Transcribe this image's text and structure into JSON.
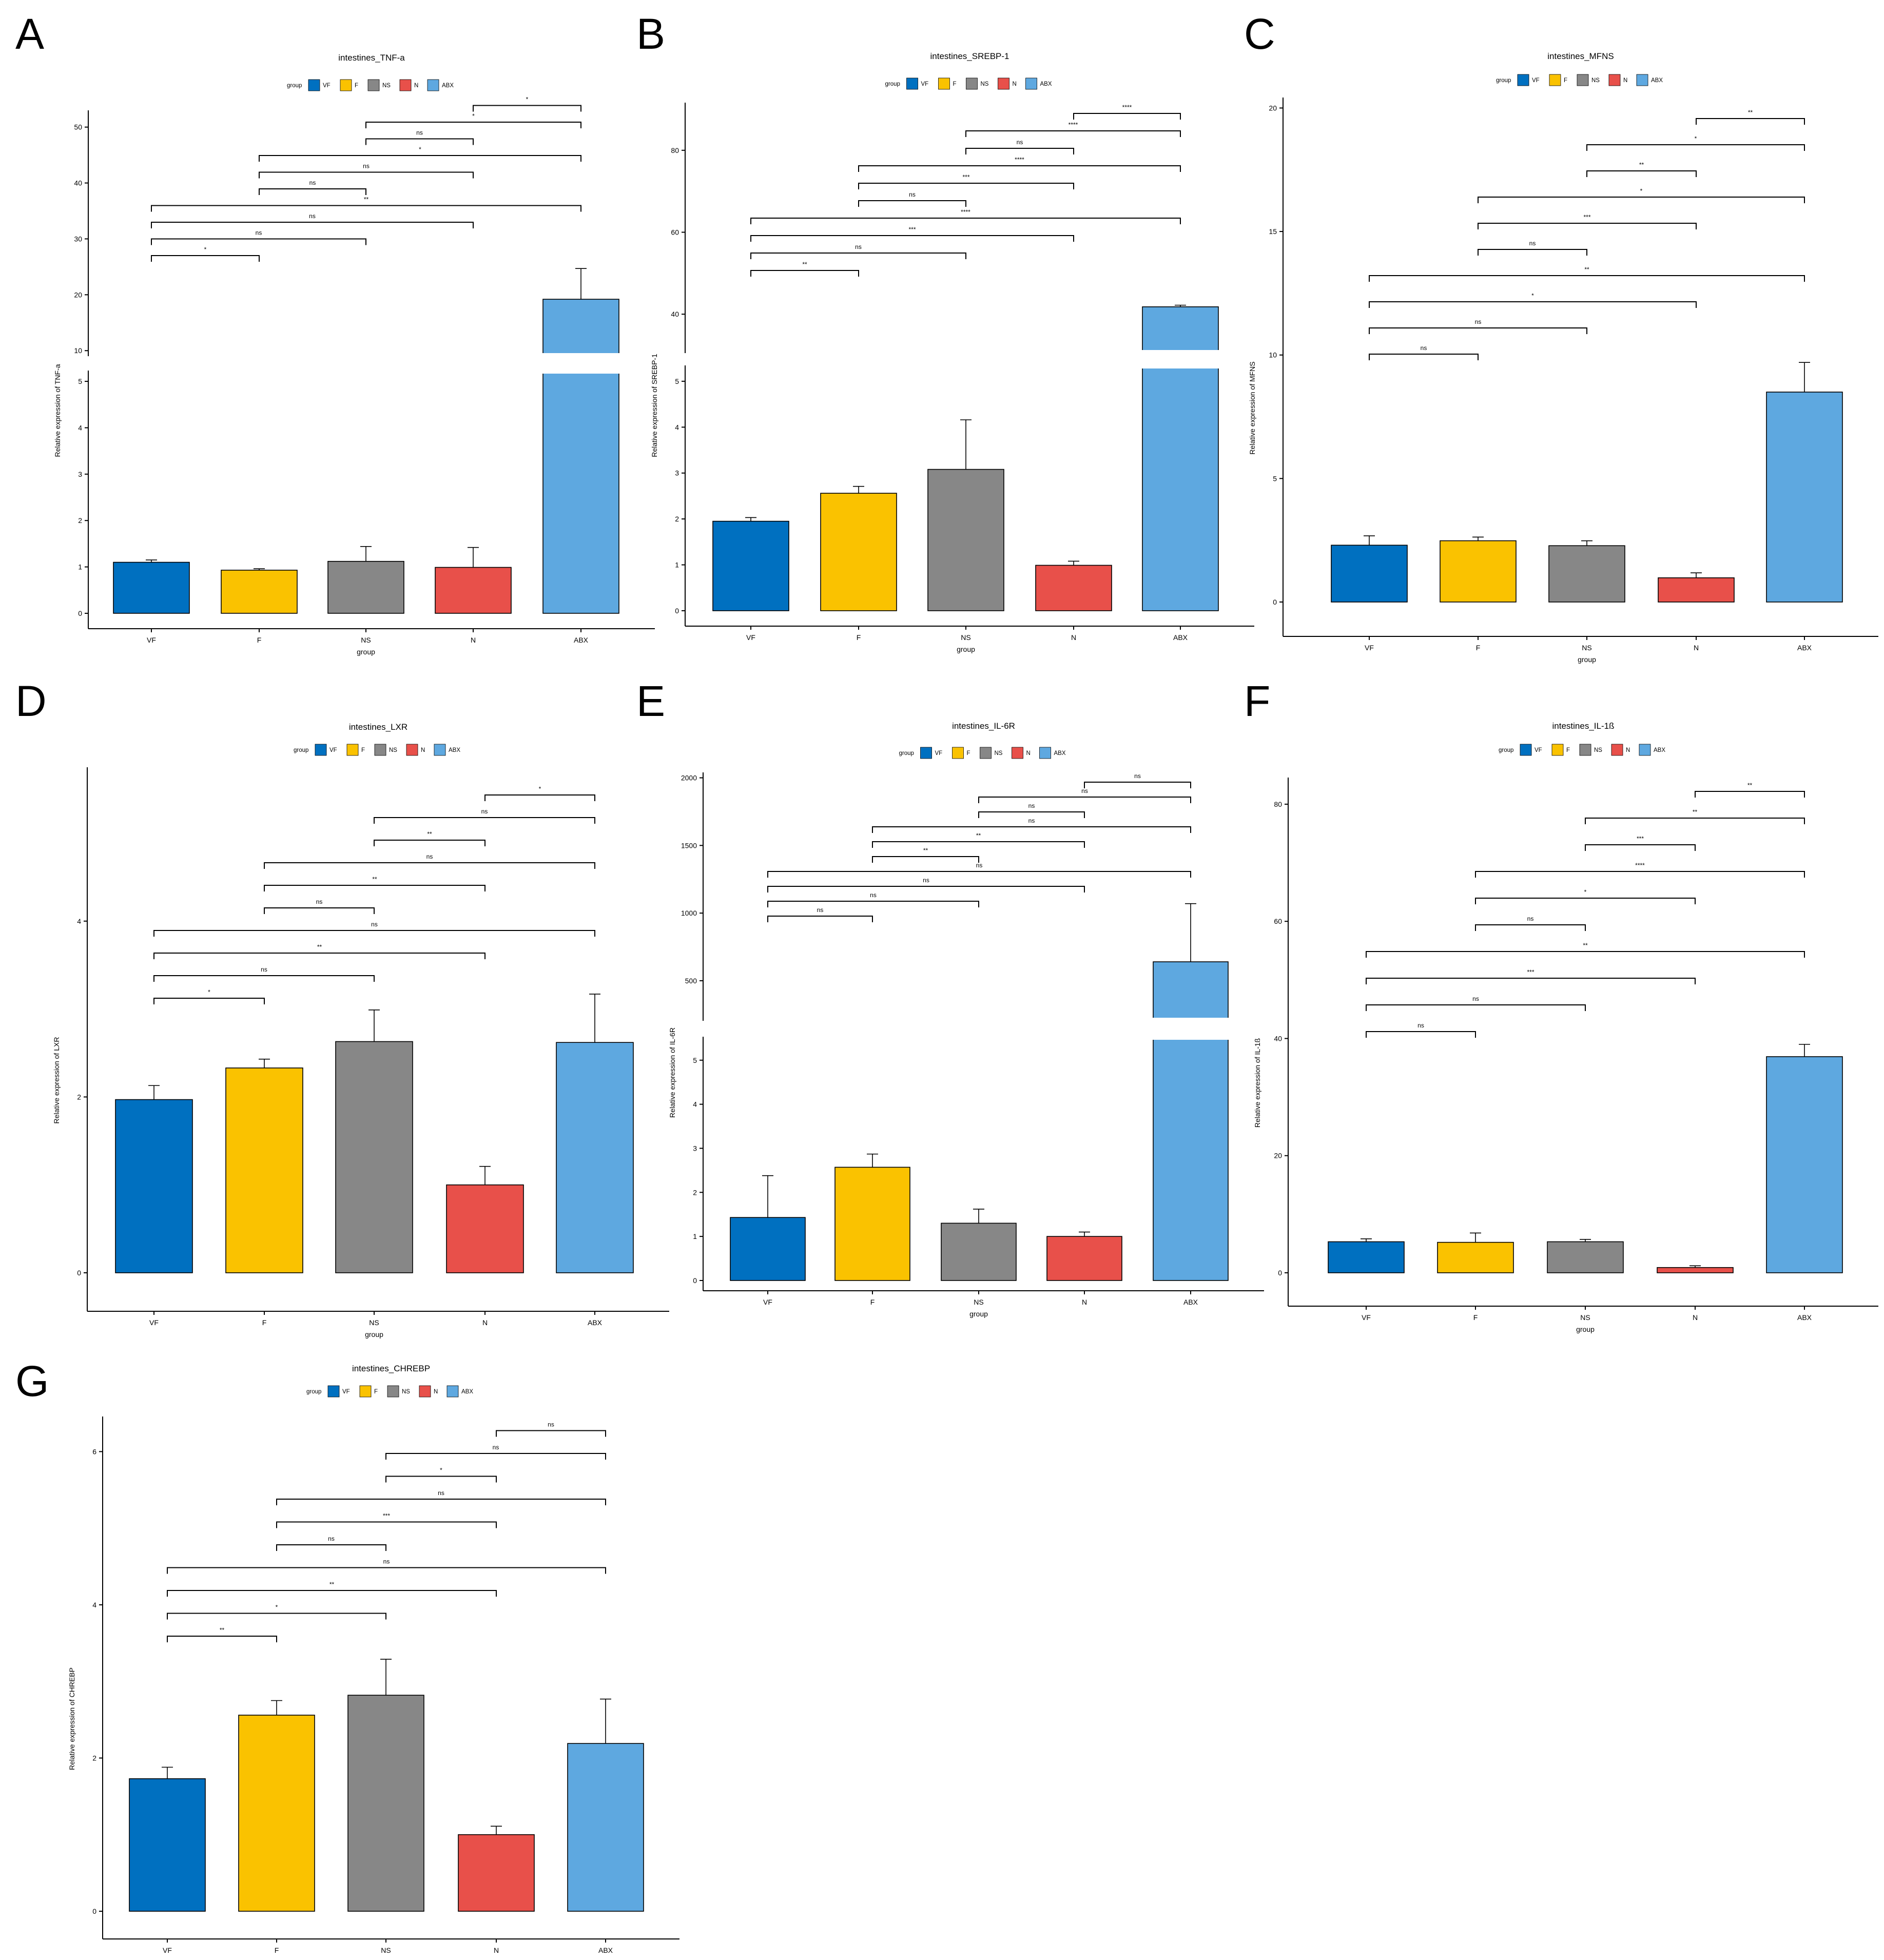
{
  "groups": [
    "VF",
    "F",
    "NS",
    "N",
    "ABX"
  ],
  "legend_title": "group",
  "colors": {
    "VF": "#0070c0",
    "F": "#fac200",
    "NS": "#878787",
    "N": "#e8504a",
    "ABX": "#5ea8e0"
  },
  "chart_data": [
    {
      "id": "A",
      "type": "bar",
      "title": "intestines_TNF-a",
      "xlabel": "group",
      "ylabel": "Relative expression of TNF-a",
      "categories": [
        "VF",
        "F",
        "NS",
        "N",
        "ABX"
      ],
      "values": [
        1.1,
        0.93,
        1.12,
        0.99,
        19.2
      ],
      "errors": [
        0.05,
        0.03,
        0.32,
        0.43,
        5.5
      ],
      "axis_break": true,
      "lower_range": [
        0,
        5.2
      ],
      "lower_ticks": [
        "0",
        "1",
        "2",
        "3",
        "4",
        "5"
      ],
      "upper_range": [
        8,
        53
      ],
      "upper_ticks": [
        "10",
        "20",
        "30",
        "40",
        "50"
      ],
      "brackets": [
        {
          "from": "VF",
          "to": "F",
          "label": "*"
        },
        {
          "from": "VF",
          "to": "NS",
          "label": "ns"
        },
        {
          "from": "VF",
          "to": "N",
          "label": "ns"
        },
        {
          "from": "VF",
          "to": "ABX",
          "label": "**"
        },
        {
          "from": "F",
          "to": "NS",
          "label": "ns"
        },
        {
          "from": "F",
          "to": "N",
          "label": "ns"
        },
        {
          "from": "F",
          "to": "ABX",
          "label": "*"
        },
        {
          "from": "NS",
          "to": "N",
          "label": "ns"
        },
        {
          "from": "NS",
          "to": "ABX",
          "label": "*"
        },
        {
          "from": "N",
          "to": "ABX",
          "label": "*"
        }
      ]
    },
    {
      "id": "B",
      "type": "bar",
      "title": "intestines_SREBP-1",
      "xlabel": "group",
      "ylabel": "Relative expression of SREBP-1",
      "categories": [
        "VF",
        "F",
        "NS",
        "N",
        "ABX"
      ],
      "values": [
        1.95,
        2.56,
        3.08,
        0.99,
        41.8
      ],
      "errors": [
        0.08,
        0.15,
        1.08,
        0.09,
        0.4
      ],
      "axis_break": true,
      "lower_range": [
        0,
        5.2
      ],
      "lower_ticks": [
        "0",
        "1",
        "2",
        "3",
        "4",
        "5"
      ],
      "upper_range": [
        29,
        91
      ],
      "upper_ticks": [
        "40",
        "60",
        "80"
      ],
      "brackets": [
        {
          "from": "VF",
          "to": "F",
          "label": "**"
        },
        {
          "from": "VF",
          "to": "NS",
          "label": "ns"
        },
        {
          "from": "VF",
          "to": "N",
          "label": "***"
        },
        {
          "from": "VF",
          "to": "ABX",
          "label": "****"
        },
        {
          "from": "F",
          "to": "NS",
          "label": "ns"
        },
        {
          "from": "F",
          "to": "N",
          "label": "***"
        },
        {
          "from": "F",
          "to": "ABX",
          "label": "****"
        },
        {
          "from": "NS",
          "to": "N",
          "label": "ns"
        },
        {
          "from": "NS",
          "to": "ABX",
          "label": "****"
        },
        {
          "from": "N",
          "to": "ABX",
          "label": "****"
        }
      ]
    },
    {
      "id": "C",
      "type": "bar",
      "title": "intestines_MFNS",
      "xlabel": "group",
      "ylabel": "Relative expression of MFNS",
      "categories": [
        "VF",
        "F",
        "NS",
        "N",
        "ABX"
      ],
      "values": [
        2.3,
        2.48,
        2.28,
        0.98,
        8.5
      ],
      "errors": [
        0.38,
        0.15,
        0.2,
        0.2,
        1.2
      ],
      "axis_break": false,
      "ylim": [
        0,
        20.3
      ],
      "ticks": [
        "0",
        "5",
        "10",
        "15",
        "20"
      ],
      "brackets": [
        {
          "from": "VF",
          "to": "F",
          "label": "ns"
        },
        {
          "from": "VF",
          "to": "NS",
          "label": "ns"
        },
        {
          "from": "VF",
          "to": "N",
          "label": "*"
        },
        {
          "from": "VF",
          "to": "ABX",
          "label": "**"
        },
        {
          "from": "F",
          "to": "NS",
          "label": "ns"
        },
        {
          "from": "F",
          "to": "N",
          "label": "***"
        },
        {
          "from": "F",
          "to": "ABX",
          "label": "*"
        },
        {
          "from": "NS",
          "to": "N",
          "label": "**"
        },
        {
          "from": "NS",
          "to": "ABX",
          "label": "*"
        },
        {
          "from": "N",
          "to": "ABX",
          "label": "**"
        }
      ]
    },
    {
      "id": "D",
      "type": "bar",
      "title": "intestines_LXR",
      "xlabel": "group",
      "ylabel": "Relative expression of LXR",
      "categories": [
        "VF",
        "F",
        "NS",
        "N",
        "ABX"
      ],
      "values": [
        1.97,
        2.33,
        2.63,
        1.0,
        2.62
      ],
      "errors": [
        0.16,
        0.1,
        0.36,
        0.21,
        0.55
      ],
      "axis_break": false,
      "ylim": [
        0,
        5.75
      ],
      "ticks": [
        "0",
        "2",
        "4"
      ],
      "brackets": [
        {
          "from": "VF",
          "to": "F",
          "label": "*"
        },
        {
          "from": "VF",
          "to": "NS",
          "label": "ns"
        },
        {
          "from": "VF",
          "to": "N",
          "label": "**"
        },
        {
          "from": "VF",
          "to": "ABX",
          "label": "ns"
        },
        {
          "from": "F",
          "to": "NS",
          "label": "ns"
        },
        {
          "from": "F",
          "to": "N",
          "label": "**"
        },
        {
          "from": "F",
          "to": "ABX",
          "label": "ns"
        },
        {
          "from": "NS",
          "to": "N",
          "label": "**"
        },
        {
          "from": "NS",
          "to": "ABX",
          "label": "ns"
        },
        {
          "from": "N",
          "to": "ABX",
          "label": "*"
        }
      ]
    },
    {
      "id": "E",
      "type": "bar",
      "title": "intestines_IL-6R",
      "xlabel": "group",
      "ylabel": "Relative expression of IL-6R",
      "categories": [
        "VF",
        "F",
        "NS",
        "N",
        "ABX"
      ],
      "values": [
        1.43,
        2.57,
        1.3,
        1.0,
        640
      ],
      "errors": [
        0.95,
        0.3,
        0.32,
        0.1,
        430
      ],
      "axis_break": true,
      "lower_range": [
        0,
        5.3
      ],
      "lower_ticks": [
        "0",
        "1",
        "2",
        "3",
        "4",
        "5"
      ],
      "upper_range": [
        200,
        2040
      ],
      "upper_ticks": [
        "500",
        "1000",
        "1500",
        "2000"
      ],
      "brackets": [
        {
          "from": "VF",
          "to": "F",
          "label": "ns"
        },
        {
          "from": "VF",
          "to": "NS",
          "label": "ns"
        },
        {
          "from": "VF",
          "to": "N",
          "label": "ns"
        },
        {
          "from": "VF",
          "to": "ABX",
          "label": "ns"
        },
        {
          "from": "F",
          "to": "NS",
          "label": "**"
        },
        {
          "from": "F",
          "to": "N",
          "label": "**"
        },
        {
          "from": "F",
          "to": "ABX",
          "label": "ns"
        },
        {
          "from": "NS",
          "to": "N",
          "label": "ns"
        },
        {
          "from": "NS",
          "to": "ABX",
          "label": "ns"
        },
        {
          "from": "N",
          "to": "ABX",
          "label": "ns"
        }
      ]
    },
    {
      "id": "F",
      "type": "bar",
      "title": "intestines_IL-1ß",
      "xlabel": "group",
      "ylabel": "Relative expression of IL-1ß",
      "categories": [
        "VF",
        "F",
        "NS",
        "N",
        "ABX"
      ],
      "values": [
        5.3,
        5.2,
        5.3,
        0.9,
        36.9
      ],
      "errors": [
        0.5,
        1.6,
        0.4,
        0.3,
        2.1
      ],
      "axis_break": false,
      "ylim": [
        0,
        83.5
      ],
      "ticks": [
        "0",
        "20",
        "40",
        "60",
        "80"
      ],
      "brackets": [
        {
          "from": "VF",
          "to": "F",
          "label": "ns"
        },
        {
          "from": "VF",
          "to": "NS",
          "label": "ns"
        },
        {
          "from": "VF",
          "to": "N",
          "label": "***"
        },
        {
          "from": "VF",
          "to": "ABX",
          "label": "**"
        },
        {
          "from": "F",
          "to": "NS",
          "label": "ns"
        },
        {
          "from": "F",
          "to": "N",
          "label": "*"
        },
        {
          "from": "F",
          "to": "ABX",
          "label": "****"
        },
        {
          "from": "NS",
          "to": "N",
          "label": "***"
        },
        {
          "from": "NS",
          "to": "ABX",
          "label": "**"
        },
        {
          "from": "N",
          "to": "ABX",
          "label": "**"
        }
      ]
    },
    {
      "id": "G",
      "type": "bar",
      "title": "intestines_CHREBP",
      "xlabel": "group",
      "ylabel": "Relative expression of CHREBP",
      "categories": [
        "VF",
        "F",
        "NS",
        "N",
        "ABX"
      ],
      "values": [
        1.73,
        2.56,
        2.82,
        1.0,
        2.19
      ],
      "errors": [
        0.15,
        0.19,
        0.47,
        0.11,
        0.58
      ],
      "axis_break": false,
      "ylim": [
        0,
        6.15
      ],
      "ticks": [
        "0",
        "2",
        "4",
        "6"
      ],
      "brackets": [
        {
          "from": "VF",
          "to": "F",
          "label": "**"
        },
        {
          "from": "VF",
          "to": "NS",
          "label": "*"
        },
        {
          "from": "VF",
          "to": "N",
          "label": "**"
        },
        {
          "from": "VF",
          "to": "ABX",
          "label": "ns"
        },
        {
          "from": "F",
          "to": "NS",
          "label": "ns"
        },
        {
          "from": "F",
          "to": "N",
          "label": "***"
        },
        {
          "from": "F",
          "to": "ABX",
          "label": "ns"
        },
        {
          "from": "NS",
          "to": "N",
          "label": "*"
        },
        {
          "from": "NS",
          "to": "ABX",
          "label": "ns"
        },
        {
          "from": "N",
          "to": "ABX",
          "label": "ns"
        }
      ]
    }
  ]
}
